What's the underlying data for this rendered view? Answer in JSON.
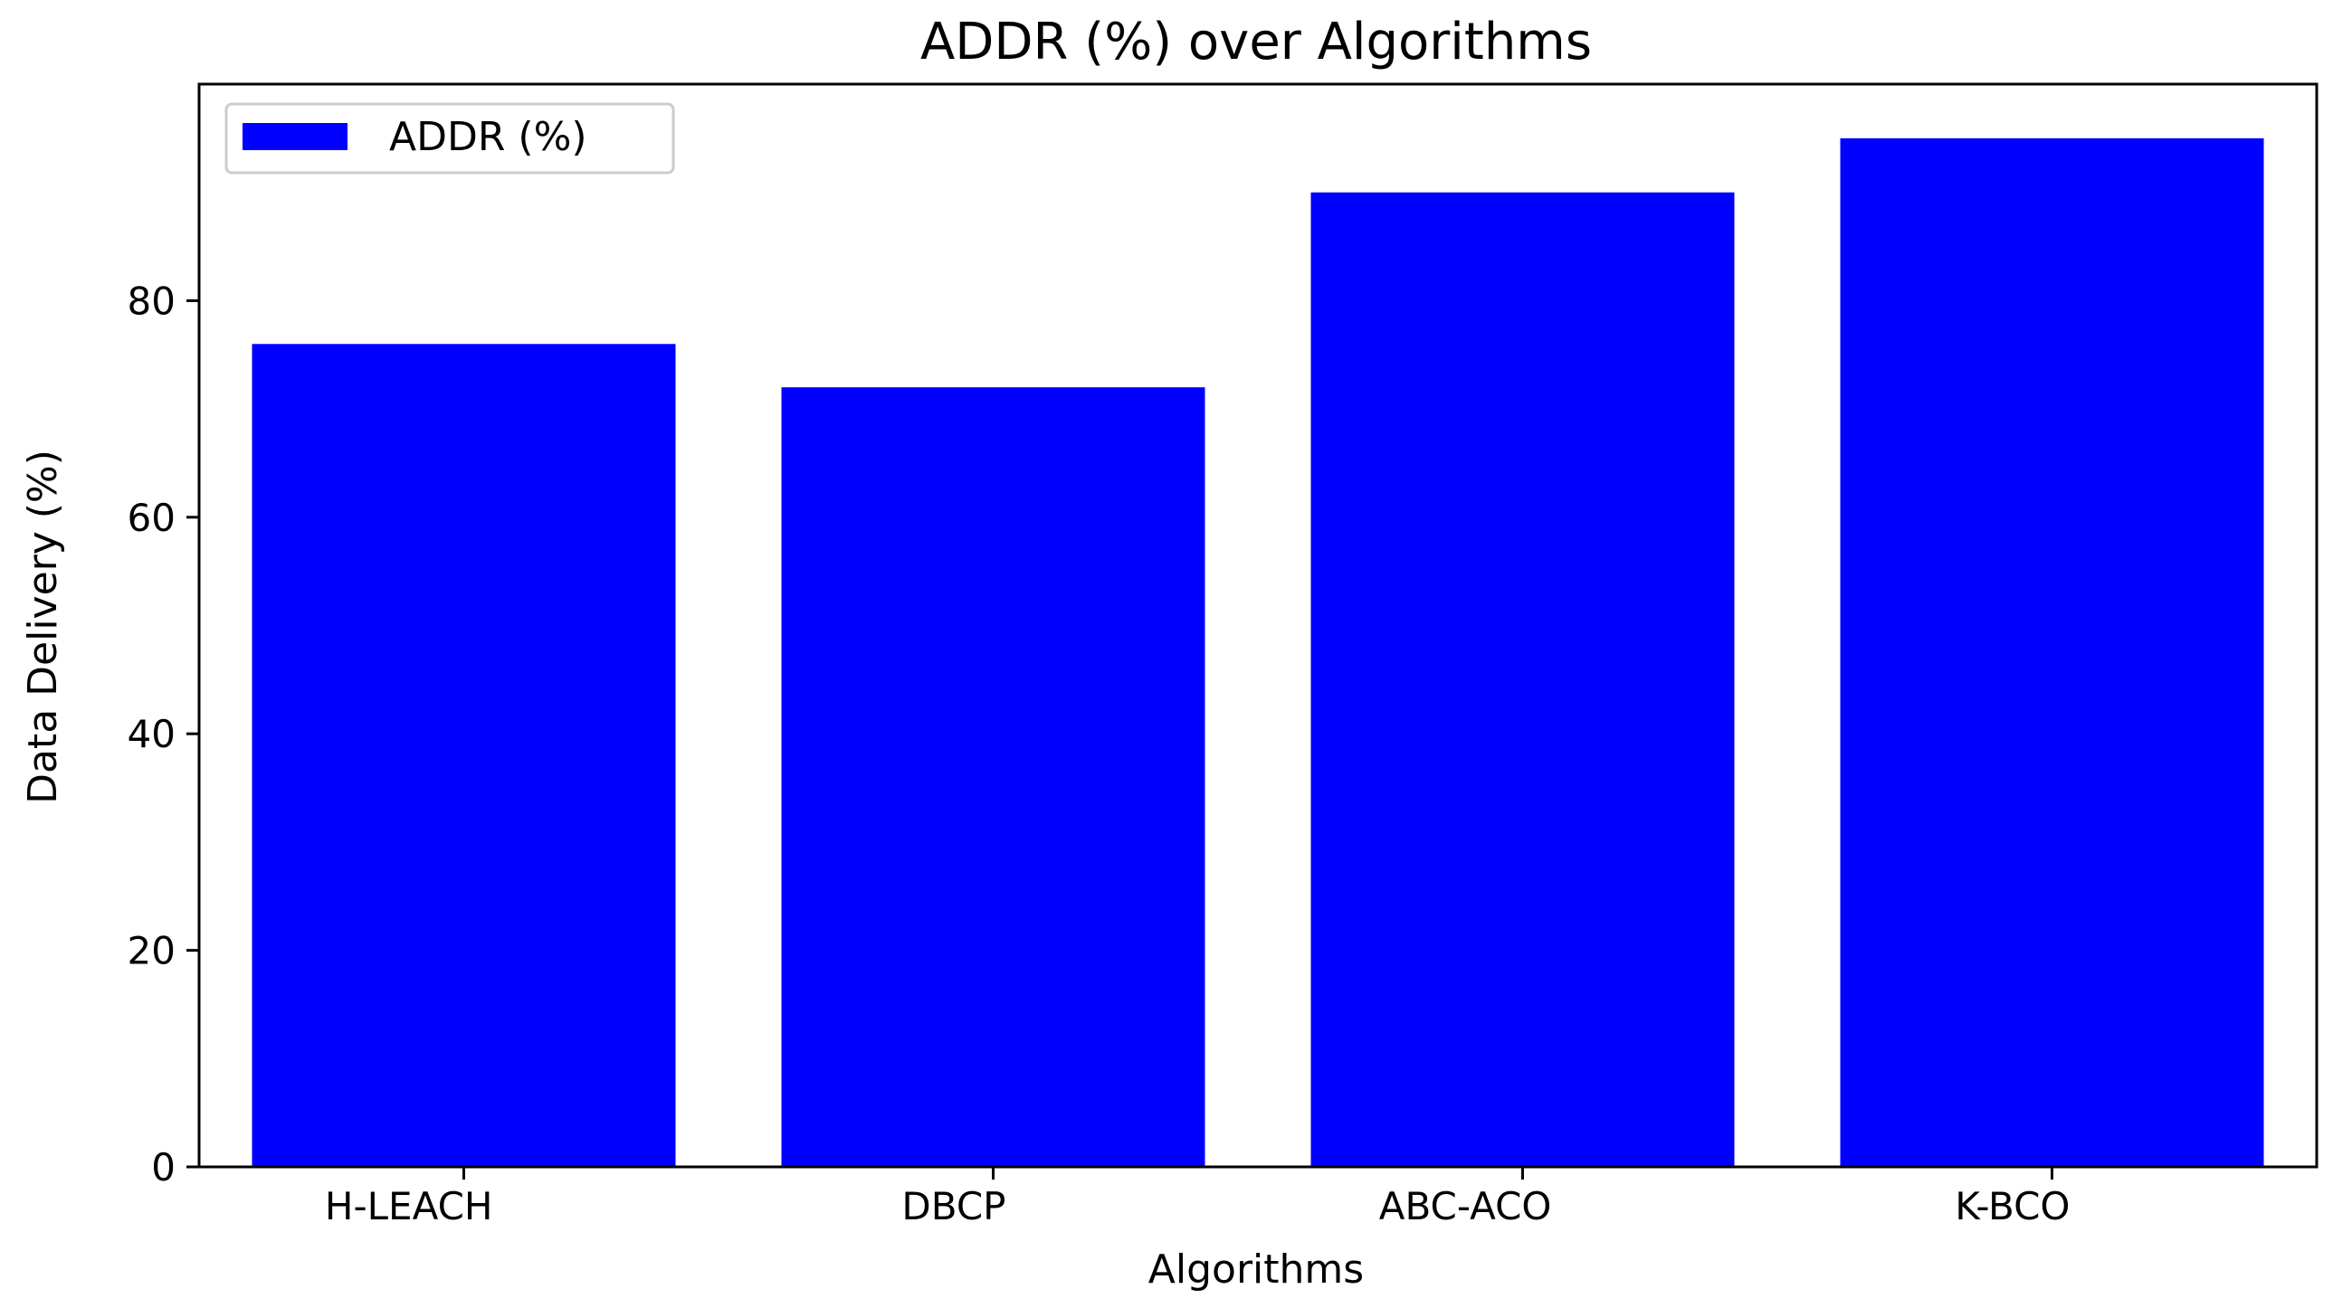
{
  "chart_data": {
    "type": "bar",
    "title": "ADDR (%) over Algorithms",
    "xlabel": "Algorithms",
    "ylabel": "Data Delivery (%)",
    "categories": [
      "H-LEACH",
      "DBCP",
      "ABC-ACO",
      "K-BCO"
    ],
    "series": [
      {
        "name": "ADDR (%)",
        "values": [
          76,
          72,
          90,
          95
        ]
      }
    ],
    "ylim": [
      0,
      100
    ],
    "yticks": [
      0,
      20,
      40,
      60,
      80
    ],
    "grid": false,
    "legend": {
      "position": "top-left",
      "entries": [
        "ADDR (%)"
      ]
    },
    "colors": {
      "bar": "#0000ff",
      "axes": "#000000",
      "background": "#ffffff"
    }
  }
}
